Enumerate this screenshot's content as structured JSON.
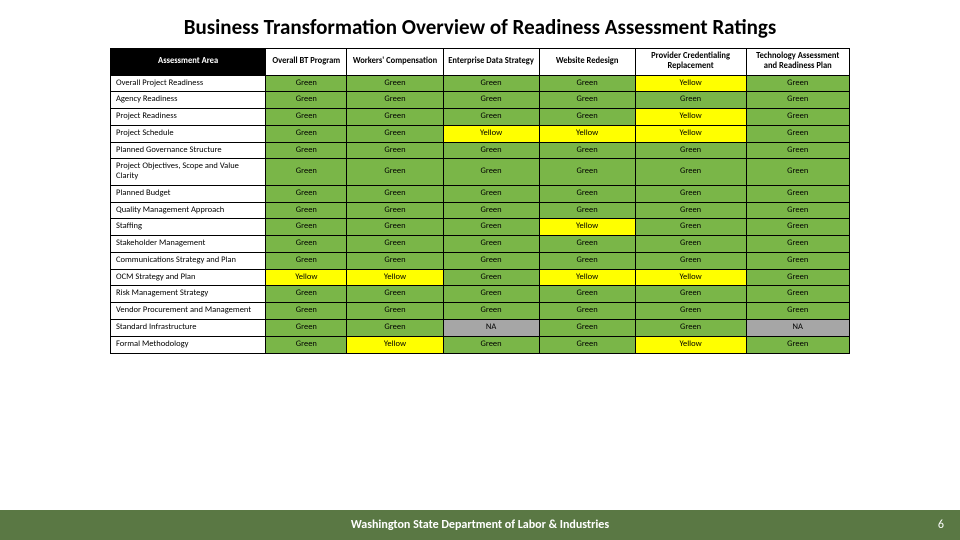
{
  "title": "Business Transformation Overview of Readiness Assessment Ratings",
  "footer": {
    "text": "Washington State Department of Labor & Industries",
    "page": "6"
  },
  "colors": {
    "Green": "#7ab648",
    "Yellow": "#ffff00",
    "NA": "#a6a6a6",
    "header_black": "#000000",
    "footer_bg": "#5a7844"
  },
  "columns": [
    "Assessment Area",
    "Overall BT Program",
    "Workers' Compensation",
    "Enterprise Data Strategy",
    "Website Redesign",
    "Provider Credentialing Replacement",
    "Technology Assessment and Readiness Plan"
  ],
  "rows": [
    {
      "label": "Overall Project Readiness",
      "cells": [
        "Green",
        "Green",
        "Green",
        "Green",
        "Yellow",
        "Green"
      ]
    },
    {
      "label": "Agency Readiness",
      "cells": [
        "Green",
        "Green",
        "Green",
        "Green",
        "Green",
        "Green"
      ]
    },
    {
      "label": "Project Readiness",
      "cells": [
        "Green",
        "Green",
        "Green",
        "Green",
        "Yellow",
        "Green"
      ]
    },
    {
      "label": "Project Schedule",
      "cells": [
        "Green",
        "Green",
        "Yellow",
        "Yellow",
        "Yellow",
        "Green"
      ]
    },
    {
      "label": "Planned Governance Structure",
      "cells": [
        "Green",
        "Green",
        "Green",
        "Green",
        "Green",
        "Green"
      ]
    },
    {
      "label": "Project Objectives, Scope and Value Clarity",
      "cells": [
        "Green",
        "Green",
        "Green",
        "Green",
        "Green",
        "Green"
      ]
    },
    {
      "label": "Planned Budget",
      "cells": [
        "Green",
        "Green",
        "Green",
        "Green",
        "Green",
        "Green"
      ]
    },
    {
      "label": "Quality Management Approach",
      "cells": [
        "Green",
        "Green",
        "Green",
        "Green",
        "Green",
        "Green"
      ]
    },
    {
      "label": "Staffing",
      "cells": [
        "Green",
        "Green",
        "Green",
        "Yellow",
        "Green",
        "Green"
      ]
    },
    {
      "label": "Stakeholder Management",
      "cells": [
        "Green",
        "Green",
        "Green",
        "Green",
        "Green",
        "Green"
      ]
    },
    {
      "label": "Communications Strategy and Plan",
      "cells": [
        "Green",
        "Green",
        "Green",
        "Green",
        "Green",
        "Green"
      ]
    },
    {
      "label": "OCM Strategy and Plan",
      "cells": [
        "Yellow",
        "Yellow",
        "Green",
        "Yellow",
        "Yellow",
        "Green"
      ]
    },
    {
      "label": "Risk Management Strategy",
      "cells": [
        "Green",
        "Green",
        "Green",
        "Green",
        "Green",
        "Green"
      ]
    },
    {
      "label": "Vendor Procurement and Management",
      "cells": [
        "Green",
        "Green",
        "Green",
        "Green",
        "Green",
        "Green"
      ]
    },
    {
      "label": "Standard Infrastructure",
      "cells": [
        "Green",
        "Green",
        "NA",
        "Green",
        "Green",
        "NA"
      ]
    },
    {
      "label": "Formal Methodology",
      "cells": [
        "Green",
        "Yellow",
        "Green",
        "Green",
        "Yellow",
        "Green"
      ]
    }
  ]
}
